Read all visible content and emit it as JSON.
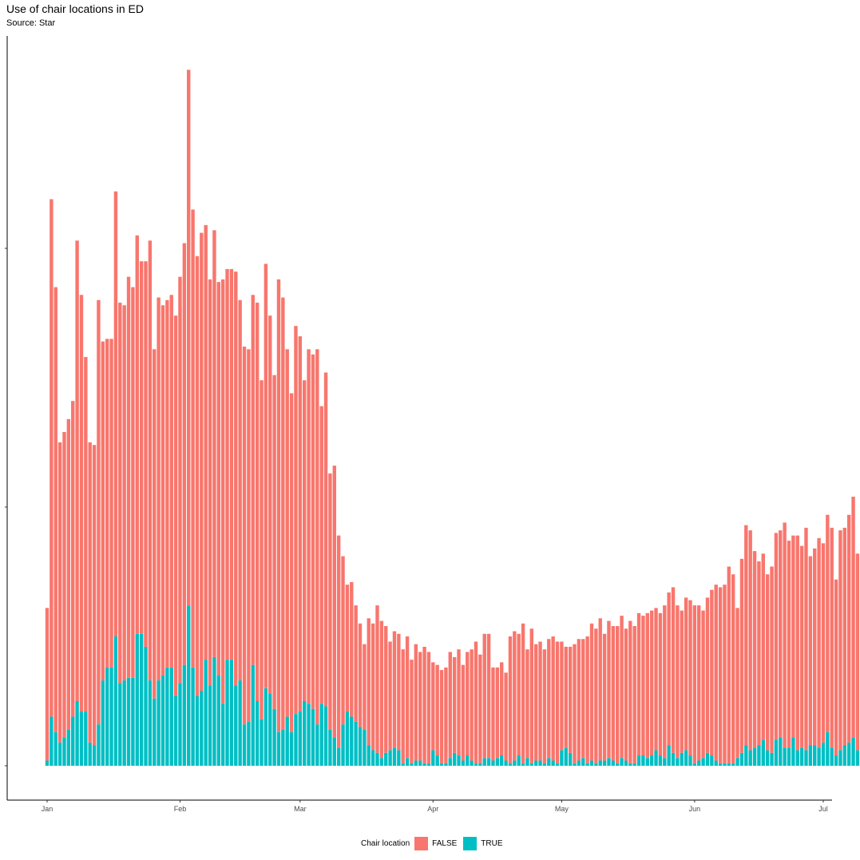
{
  "chart_data": {
    "type": "bar",
    "stacked": true,
    "title": "Use of chair locations in ED",
    "subtitle": "Source: Star",
    "xlabel": "",
    "ylabel": "",
    "x_ticks": [
      "Jan",
      "Feb",
      "Mar",
      "Apr",
      "May",
      "Jun",
      "Jul"
    ],
    "x_range": [
      "2023-01-01",
      "2023-06-30"
    ],
    "y_ticks": [
      "",
      "",
      ""
    ],
    "y_tick_values": [
      0,
      100,
      200
    ],
    "ylim": [
      0,
      270
    ],
    "grid": false,
    "legend": {
      "title": "Chair location",
      "position": "bottom",
      "entries": [
        {
          "label": "FALSE",
          "color": "#F8766D"
        },
        {
          "label": "TRUE",
          "color": "#00BFC4"
        }
      ]
    },
    "colors": {
      "FALSE": "#F8766D",
      "TRUE": "#00BFC4"
    },
    "series": [
      {
        "name": "TRUE",
        "values": [
          2,
          19,
          13,
          9,
          11,
          14,
          19,
          25,
          21,
          21,
          9,
          8,
          16,
          33,
          38,
          38,
          50,
          32,
          33,
          34,
          34,
          51,
          51,
          46,
          33,
          26,
          33,
          35,
          38,
          38,
          27,
          32,
          39,
          62,
          38,
          27,
          29,
          41,
          31,
          42,
          35,
          24,
          41,
          41,
          31,
          33,
          16,
          17,
          39,
          25,
          18,
          30,
          28,
          22,
          13,
          14,
          19,
          13,
          20,
          21,
          25,
          24,
          22,
          16,
          24,
          23,
          14,
          11,
          7,
          16,
          21,
          19,
          17,
          15,
          14,
          8,
          6,
          5,
          3,
          5,
          6,
          7,
          6,
          1,
          3,
          1,
          2,
          2,
          1,
          1,
          6,
          4,
          1,
          1,
          3,
          5,
          4,
          2,
          4,
          2,
          1,
          1,
          3,
          3,
          2,
          3,
          4,
          2,
          1,
          2,
          4,
          1,
          3,
          1,
          2,
          2,
          1,
          3,
          2,
          1,
          6,
          7,
          5,
          1,
          2,
          3,
          1,
          2,
          1,
          2,
          2,
          3,
          2,
          1,
          3,
          2,
          1,
          1,
          4,
          4,
          3,
          4,
          6,
          4,
          3,
          8,
          5,
          3,
          5,
          6,
          4,
          1,
          2,
          3,
          5,
          4,
          2,
          1,
          1,
          1,
          1,
          3,
          5,
          8,
          6,
          7,
          8,
          10,
          6,
          5,
          10,
          11,
          7,
          7,
          11,
          6,
          7,
          6,
          8,
          8,
          7,
          9,
          13,
          7,
          4,
          6,
          8,
          9,
          11,
          6,
          8,
          14,
          6,
          5,
          6,
          10,
          5,
          3
        ]
      },
      {
        "name": "FALSE",
        "values": [
          59,
          200,
          172,
          116,
          118,
          120,
          122,
          178,
          161,
          137,
          116,
          116,
          164,
          131,
          127,
          127,
          172,
          147,
          145,
          155,
          151,
          154,
          144,
          149,
          170,
          135,
          148,
          143,
          142,
          144,
          147,
          157,
          163,
          207,
          177,
          170,
          177,
          168,
          157,
          165,
          152,
          164,
          151,
          151,
          160,
          147,
          146,
          144,
          143,
          154,
          131,
          164,
          146,
          129,
          175,
          167,
          142,
          131,
          150,
          145,
          124,
          137,
          137,
          145,
          115,
          129,
          99,
          105,
          82,
          65,
          49,
          52,
          45,
          40,
          33,
          49,
          49,
          57,
          53,
          49,
          42,
          45,
          45,
          44,
          47,
          40,
          45,
          42,
          45,
          43,
          34,
          35,
          36,
          37,
          41,
          37,
          41,
          37,
          40,
          43,
          47,
          42,
          48,
          48,
          36,
          35,
          36,
          34,
          49,
          50,
          47,
          54,
          42,
          52,
          45,
          46,
          44,
          46,
          48,
          47,
          42,
          39,
          41,
          46,
          47,
          46,
          49,
          53,
          52,
          55,
          49,
          53,
          52,
          53,
          55,
          51,
          55,
          53,
          55,
          54,
          56,
          56,
          55,
          55,
          59,
          59,
          64,
          59,
          55,
          59,
          60,
          61,
          60,
          57,
          60,
          64,
          68,
          68,
          69,
          76,
          73,
          58,
          75,
          85,
          85,
          76,
          71,
          72,
          68,
          72,
          80,
          80,
          87,
          80,
          78,
          83,
          78,
          86,
          73,
          76,
          81,
          77,
          84,
          85,
          68,
          85,
          84,
          88,
          93,
          76,
          84,
          86,
          70,
          76,
          90,
          96,
          93,
          34
        ]
      }
    ]
  }
}
